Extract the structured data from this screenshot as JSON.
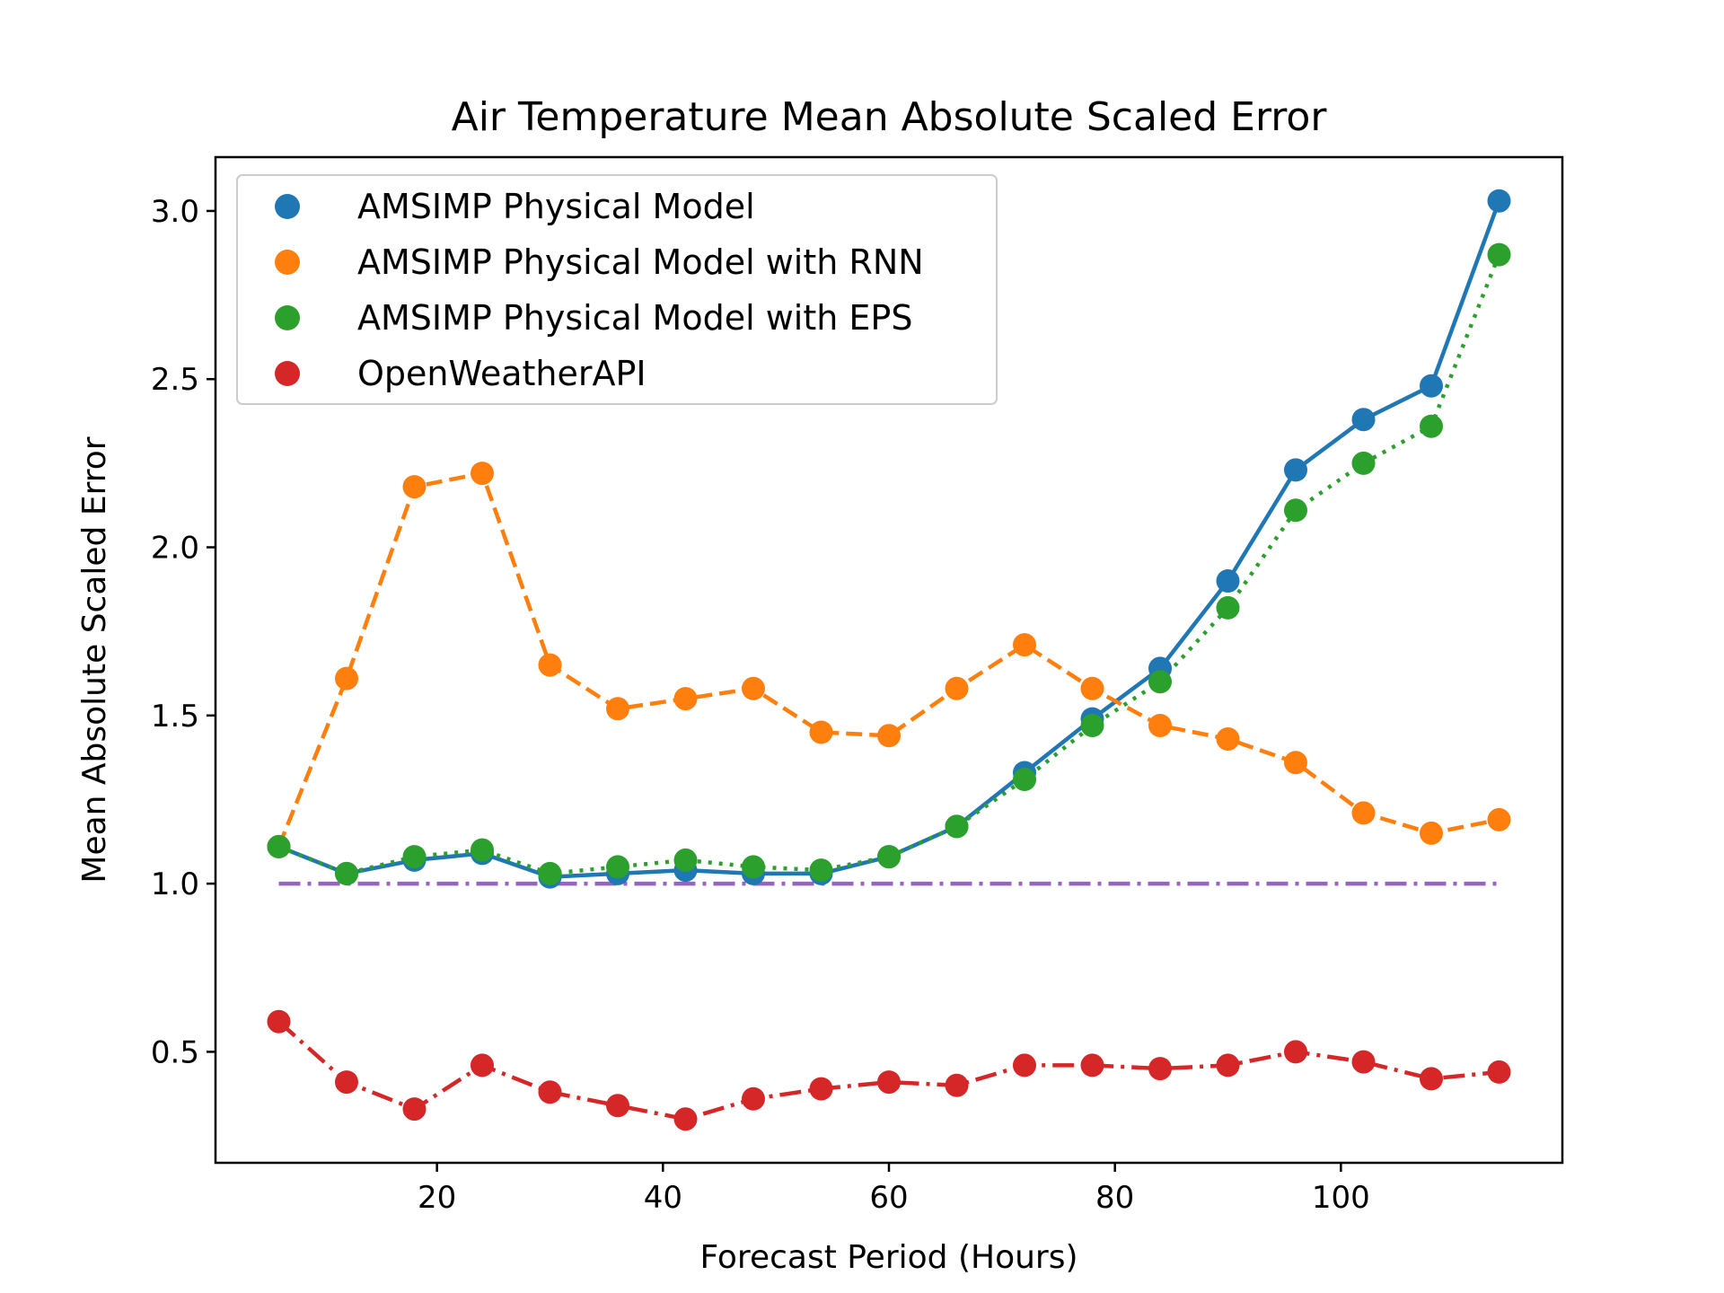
{
  "chart_data": {
    "type": "line",
    "title": "Air Temperature Mean Absolute Scaled Error",
    "xlabel": "Forecast Period (Hours)",
    "ylabel": "Mean Absolute Scaled Error",
    "xlim": [
      0.4,
      119.6
    ],
    "ylim": [
      0.17,
      3.16
    ],
    "xticks": [
      20,
      40,
      60,
      80,
      100
    ],
    "yticks": [
      0.5,
      1.0,
      1.5,
      2.0,
      2.5,
      3.0
    ],
    "xtick_labels": [
      "20",
      "40",
      "60",
      "80",
      "100"
    ],
    "ytick_labels": [
      "0.5",
      "1.0",
      "1.5",
      "2.0",
      "2.5",
      "3.0"
    ],
    "grid": false,
    "legend_position": "top-left",
    "x": [
      6,
      12,
      18,
      24,
      30,
      36,
      42,
      48,
      54,
      60,
      66,
      72,
      78,
      84,
      90,
      96,
      102,
      108,
      114
    ],
    "series": [
      {
        "name": "AMSIMP Physical Model",
        "color": "#1f77b4",
        "line_style": "solid",
        "values": [
          1.11,
          1.03,
          1.07,
          1.09,
          1.02,
          1.03,
          1.04,
          1.03,
          1.03,
          1.08,
          1.17,
          1.33,
          1.49,
          1.64,
          1.9,
          2.23,
          2.38,
          2.48,
          3.03
        ]
      },
      {
        "name": "AMSIMP Physical Model with RNN",
        "color": "#ff7f0e",
        "line_style": "dashed",
        "values": [
          1.11,
          1.61,
          2.18,
          2.22,
          1.65,
          1.52,
          1.55,
          1.58,
          1.45,
          1.44,
          1.58,
          1.71,
          1.58,
          1.47,
          1.43,
          1.36,
          1.21,
          1.15,
          1.19
        ]
      },
      {
        "name": "AMSIMP Physical Model with EPS",
        "color": "#2ca02c",
        "line_style": "dotted",
        "values": [
          1.11,
          1.03,
          1.08,
          1.1,
          1.03,
          1.05,
          1.07,
          1.05,
          1.04,
          1.08,
          1.17,
          1.31,
          1.47,
          1.6,
          1.82,
          2.11,
          2.25,
          2.36,
          2.87
        ]
      },
      {
        "name": "OpenWeatherAPI",
        "color": "#d62728",
        "line_style": "dashdot",
        "values": [
          0.59,
          0.41,
          0.33,
          0.46,
          0.38,
          0.34,
          0.3,
          0.36,
          0.39,
          0.41,
          0.4,
          0.46,
          0.46,
          0.45,
          0.46,
          0.5,
          0.47,
          0.42,
          0.44
        ]
      }
    ],
    "reference_line": {
      "color": "#9467bd",
      "line_style": "dashdot",
      "value": 1.0,
      "x_range": [
        6,
        114
      ]
    }
  }
}
